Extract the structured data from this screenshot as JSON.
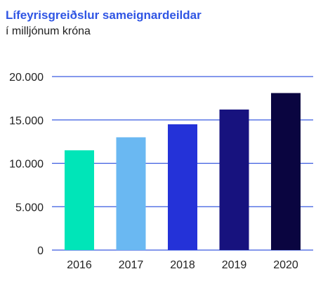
{
  "chart_data": {
    "type": "bar",
    "title": "Lífeyrisgreiðslur sameignardeildar",
    "subtitle": "í milljónum króna",
    "xlabel": "",
    "ylabel": "",
    "categories": [
      "2016",
      "2017",
      "2018",
      "2019",
      "2020"
    ],
    "values": [
      11500,
      13000,
      14500,
      16200,
      18100
    ],
    "bar_colors": [
      "#00e5b8",
      "#6ab8f2",
      "#2432d8",
      "#17127e",
      "#0a0540"
    ],
    "gridline_color": "#3a5be0",
    "ylim": [
      0,
      20000
    ],
    "yticks": [
      0,
      5000,
      10000,
      15000,
      20000
    ],
    "ytick_labels": [
      "0",
      "5.000",
      "10.000",
      "15.000",
      "20.000"
    ],
    "grid": true,
    "legend": "none"
  }
}
